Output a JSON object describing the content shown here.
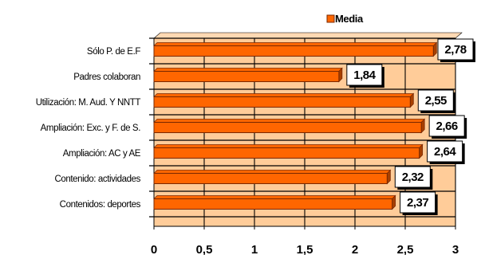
{
  "chart_data": {
    "type": "bar",
    "orientation": "horizontal",
    "categories": [
      "Sólo P. de E.F",
      "Padres colaboran",
      "Utilización: M. Aud. Y NNTT",
      "Ampliación: Exc. y F. de S.",
      "Ampliación: AC y AE",
      "Contenido: actividades",
      "Contenidos: deportes"
    ],
    "series": [
      {
        "name": "Media",
        "values": [
          2.78,
          1.84,
          2.55,
          2.66,
          2.64,
          2.32,
          2.37
        ]
      }
    ],
    "data_labels": [
      "2,78",
      "1,84",
      "2,55",
      "2,66",
      "2,64",
      "2,32",
      "2,37"
    ],
    "xticks": [
      "0",
      "0,5",
      "1",
      "1,5",
      "2",
      "2,5",
      "3"
    ],
    "xlim": [
      0,
      3
    ],
    "legend_position": "top",
    "colors": {
      "bar": "#ff6600",
      "bar_edge": "#7a2800",
      "bar_side": "#a84000",
      "floor": "#ffcc99",
      "wall": "#ffd9b3",
      "grid": "#000000"
    }
  }
}
